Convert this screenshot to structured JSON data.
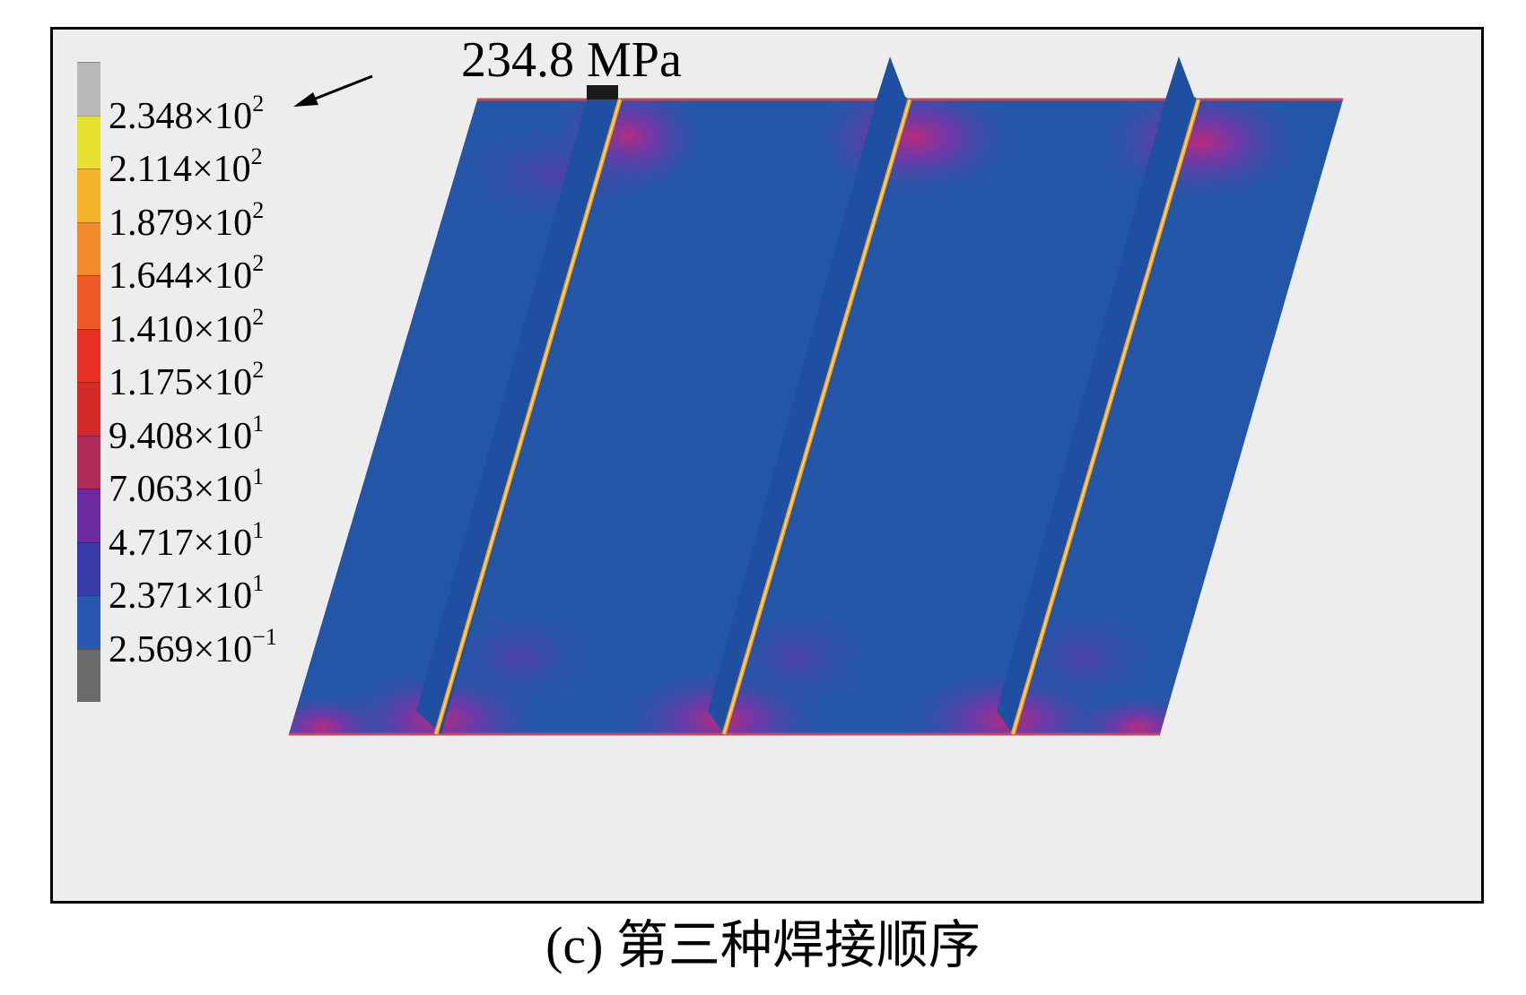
{
  "peak_annotation": "234.8 MPa",
  "legend": {
    "entries": [
      {
        "mantissa": "2.348",
        "exp": "2",
        "color": "#b9b9b9"
      },
      {
        "mantissa": "2.114",
        "exp": "2",
        "color": "#e6e22e"
      },
      {
        "mantissa": "1.879",
        "exp": "2",
        "color": "#f4b42a"
      },
      {
        "mantissa": "1.644",
        "exp": "2",
        "color": "#f08a2a"
      },
      {
        "mantissa": "1.410",
        "exp": "2",
        "color": "#ee5a2a"
      },
      {
        "mantissa": "1.175",
        "exp": "2",
        "color": "#e83024"
      },
      {
        "mantissa": "9.408",
        "exp": "1",
        "color": "#d42a2a"
      },
      {
        "mantissa": "7.063",
        "exp": "1",
        "color": "#b02a5a"
      },
      {
        "mantissa": "4.717",
        "exp": "1",
        "color": "#6a2aa0"
      },
      {
        "mantissa": "2.371",
        "exp": "1",
        "color": "#3a3aa8"
      },
      {
        "mantissa": "2.569",
        "exp": "−1",
        "color": "#2a58b0"
      }
    ],
    "bottom_color": "#6b6b6b"
  },
  "colors": {
    "plate": "#2456a8",
    "plate_dark": "#1d4a96",
    "stiffener_side": "#1e4fa0",
    "stiffener_top": "#2a5fb6",
    "weld_line": "#f0a030",
    "weld_core": "#ffe070",
    "hot_spot": "#b03a8a",
    "hot_spot_warm": "#6a3aa0",
    "frame_bg": "#ededed"
  },
  "caption": "(c) 第三种焊接顺序"
}
